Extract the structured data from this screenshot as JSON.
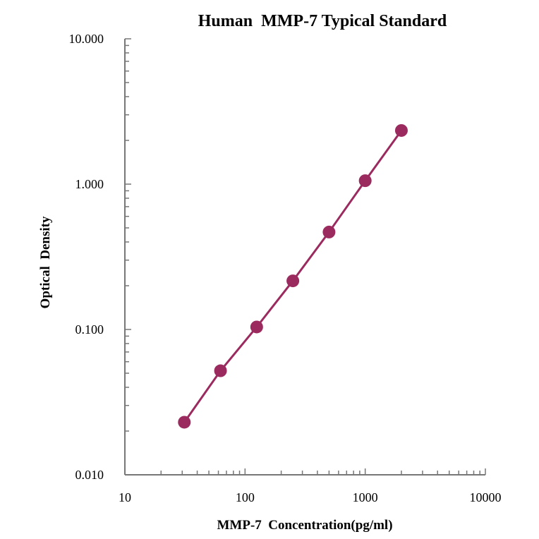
{
  "chart_data": {
    "type": "line",
    "title": "Human  MMP-7 Typical Standard",
    "xlabel": "MMP-7  Concentration(pg/ml)",
    "ylabel": "Optical  Density",
    "x_scale": "log",
    "y_scale": "log",
    "xlim": [
      10,
      10000
    ],
    "ylim": [
      0.01,
      10
    ],
    "x_tick_labels": [
      "10",
      "100",
      "1000",
      "10000"
    ],
    "y_tick_labels": [
      "0.010",
      "0.100",
      "1.000",
      "10.000"
    ],
    "grid": false,
    "legend": "none",
    "series_color": "#9b2a5e",
    "series": [
      {
        "x": [
          31.25,
          62.5,
          125,
          250,
          500,
          1000,
          2000
        ],
        "y": [
          0.023,
          0.052,
          0.104,
          0.216,
          0.468,
          1.056,
          2.34
        ]
      }
    ]
  }
}
